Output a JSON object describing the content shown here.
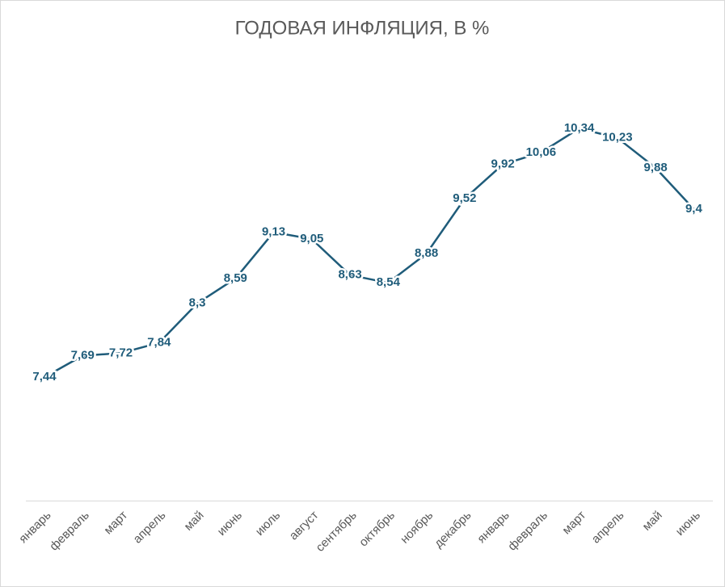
{
  "chart_data": {
    "type": "line",
    "title": "ГОДОВАЯ ИНФЛЯЦИЯ, В %",
    "categories": [
      "январь",
      "февраль",
      "март",
      "апрель",
      "май",
      "июнь",
      "июль",
      "август",
      "сентябрь",
      "октябрь",
      "ноябрь",
      "декабрь",
      "январь",
      "февраль",
      "март",
      "апрель",
      "май",
      "июнь"
    ],
    "values": [
      7.44,
      7.69,
      7.72,
      7.84,
      8.3,
      8.59,
      9.13,
      9.05,
      8.63,
      8.54,
      8.88,
      9.52,
      9.92,
      10.06,
      10.34,
      10.23,
      9.88,
      9.4
    ],
    "value_labels": [
      "7,44",
      "7,69",
      "7,72",
      "7,84",
      "8,3",
      "8,59",
      "9,13",
      "9,05",
      "8,63",
      "8,54",
      "8,88",
      "9,52",
      "9,92",
      "10,06",
      "10,34",
      "10,23",
      "9,88",
      "9,4"
    ],
    "color": "#1f5c7a",
    "ylim": [
      6,
      11
    ],
    "grid": false
  }
}
